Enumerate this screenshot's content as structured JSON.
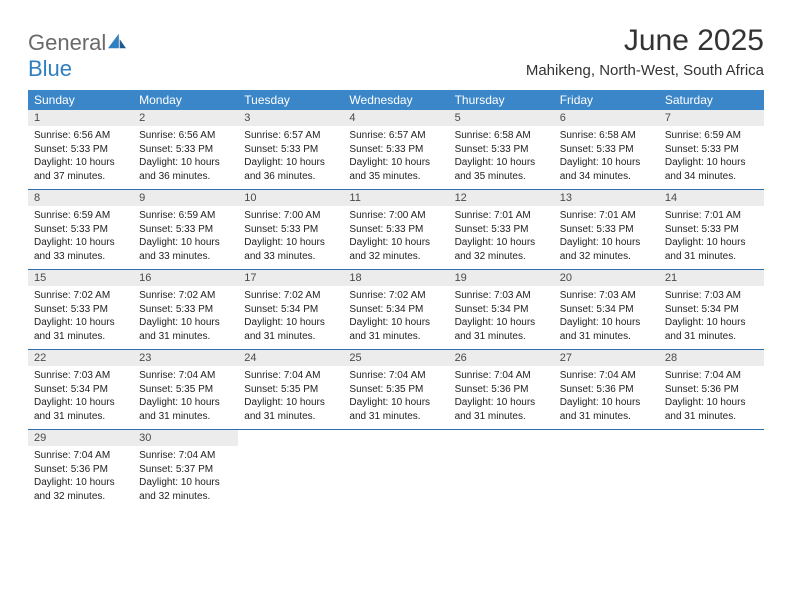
{
  "logo": {
    "word1": "General",
    "word2": "Blue"
  },
  "title": "June 2025",
  "location": "Mahikeng, North-West, South Africa",
  "header_bg": "#3a86c8",
  "week_border": "#2f6fa8",
  "daynum_bg": "#ececec",
  "weekdays": [
    "Sunday",
    "Monday",
    "Tuesday",
    "Wednesday",
    "Thursday",
    "Friday",
    "Saturday"
  ],
  "weeks": [
    [
      {
        "n": "1",
        "sr": "Sunrise: 6:56 AM",
        "ss": "Sunset: 5:33 PM",
        "d1": "Daylight: 10 hours",
        "d2": "and 37 minutes."
      },
      {
        "n": "2",
        "sr": "Sunrise: 6:56 AM",
        "ss": "Sunset: 5:33 PM",
        "d1": "Daylight: 10 hours",
        "d2": "and 36 minutes."
      },
      {
        "n": "3",
        "sr": "Sunrise: 6:57 AM",
        "ss": "Sunset: 5:33 PM",
        "d1": "Daylight: 10 hours",
        "d2": "and 36 minutes."
      },
      {
        "n": "4",
        "sr": "Sunrise: 6:57 AM",
        "ss": "Sunset: 5:33 PM",
        "d1": "Daylight: 10 hours",
        "d2": "and 35 minutes."
      },
      {
        "n": "5",
        "sr": "Sunrise: 6:58 AM",
        "ss": "Sunset: 5:33 PM",
        "d1": "Daylight: 10 hours",
        "d2": "and 35 minutes."
      },
      {
        "n": "6",
        "sr": "Sunrise: 6:58 AM",
        "ss": "Sunset: 5:33 PM",
        "d1": "Daylight: 10 hours",
        "d2": "and 34 minutes."
      },
      {
        "n": "7",
        "sr": "Sunrise: 6:59 AM",
        "ss": "Sunset: 5:33 PM",
        "d1": "Daylight: 10 hours",
        "d2": "and 34 minutes."
      }
    ],
    [
      {
        "n": "8",
        "sr": "Sunrise: 6:59 AM",
        "ss": "Sunset: 5:33 PM",
        "d1": "Daylight: 10 hours",
        "d2": "and 33 minutes."
      },
      {
        "n": "9",
        "sr": "Sunrise: 6:59 AM",
        "ss": "Sunset: 5:33 PM",
        "d1": "Daylight: 10 hours",
        "d2": "and 33 minutes."
      },
      {
        "n": "10",
        "sr": "Sunrise: 7:00 AM",
        "ss": "Sunset: 5:33 PM",
        "d1": "Daylight: 10 hours",
        "d2": "and 33 minutes."
      },
      {
        "n": "11",
        "sr": "Sunrise: 7:00 AM",
        "ss": "Sunset: 5:33 PM",
        "d1": "Daylight: 10 hours",
        "d2": "and 32 minutes."
      },
      {
        "n": "12",
        "sr": "Sunrise: 7:01 AM",
        "ss": "Sunset: 5:33 PM",
        "d1": "Daylight: 10 hours",
        "d2": "and 32 minutes."
      },
      {
        "n": "13",
        "sr": "Sunrise: 7:01 AM",
        "ss": "Sunset: 5:33 PM",
        "d1": "Daylight: 10 hours",
        "d2": "and 32 minutes."
      },
      {
        "n": "14",
        "sr": "Sunrise: 7:01 AM",
        "ss": "Sunset: 5:33 PM",
        "d1": "Daylight: 10 hours",
        "d2": "and 31 minutes."
      }
    ],
    [
      {
        "n": "15",
        "sr": "Sunrise: 7:02 AM",
        "ss": "Sunset: 5:33 PM",
        "d1": "Daylight: 10 hours",
        "d2": "and 31 minutes."
      },
      {
        "n": "16",
        "sr": "Sunrise: 7:02 AM",
        "ss": "Sunset: 5:33 PM",
        "d1": "Daylight: 10 hours",
        "d2": "and 31 minutes."
      },
      {
        "n": "17",
        "sr": "Sunrise: 7:02 AM",
        "ss": "Sunset: 5:34 PM",
        "d1": "Daylight: 10 hours",
        "d2": "and 31 minutes."
      },
      {
        "n": "18",
        "sr": "Sunrise: 7:02 AM",
        "ss": "Sunset: 5:34 PM",
        "d1": "Daylight: 10 hours",
        "d2": "and 31 minutes."
      },
      {
        "n": "19",
        "sr": "Sunrise: 7:03 AM",
        "ss": "Sunset: 5:34 PM",
        "d1": "Daylight: 10 hours",
        "d2": "and 31 minutes."
      },
      {
        "n": "20",
        "sr": "Sunrise: 7:03 AM",
        "ss": "Sunset: 5:34 PM",
        "d1": "Daylight: 10 hours",
        "d2": "and 31 minutes."
      },
      {
        "n": "21",
        "sr": "Sunrise: 7:03 AM",
        "ss": "Sunset: 5:34 PM",
        "d1": "Daylight: 10 hours",
        "d2": "and 31 minutes."
      }
    ],
    [
      {
        "n": "22",
        "sr": "Sunrise: 7:03 AM",
        "ss": "Sunset: 5:34 PM",
        "d1": "Daylight: 10 hours",
        "d2": "and 31 minutes."
      },
      {
        "n": "23",
        "sr": "Sunrise: 7:04 AM",
        "ss": "Sunset: 5:35 PM",
        "d1": "Daylight: 10 hours",
        "d2": "and 31 minutes."
      },
      {
        "n": "24",
        "sr": "Sunrise: 7:04 AM",
        "ss": "Sunset: 5:35 PM",
        "d1": "Daylight: 10 hours",
        "d2": "and 31 minutes."
      },
      {
        "n": "25",
        "sr": "Sunrise: 7:04 AM",
        "ss": "Sunset: 5:35 PM",
        "d1": "Daylight: 10 hours",
        "d2": "and 31 minutes."
      },
      {
        "n": "26",
        "sr": "Sunrise: 7:04 AM",
        "ss": "Sunset: 5:36 PM",
        "d1": "Daylight: 10 hours",
        "d2": "and 31 minutes."
      },
      {
        "n": "27",
        "sr": "Sunrise: 7:04 AM",
        "ss": "Sunset: 5:36 PM",
        "d1": "Daylight: 10 hours",
        "d2": "and 31 minutes."
      },
      {
        "n": "28",
        "sr": "Sunrise: 7:04 AM",
        "ss": "Sunset: 5:36 PM",
        "d1": "Daylight: 10 hours",
        "d2": "and 31 minutes."
      }
    ],
    [
      {
        "n": "29",
        "sr": "Sunrise: 7:04 AM",
        "ss": "Sunset: 5:36 PM",
        "d1": "Daylight: 10 hours",
        "d2": "and 32 minutes."
      },
      {
        "n": "30",
        "sr": "Sunrise: 7:04 AM",
        "ss": "Sunset: 5:37 PM",
        "d1": "Daylight: 10 hours",
        "d2": "and 32 minutes."
      },
      null,
      null,
      null,
      null,
      null
    ]
  ]
}
